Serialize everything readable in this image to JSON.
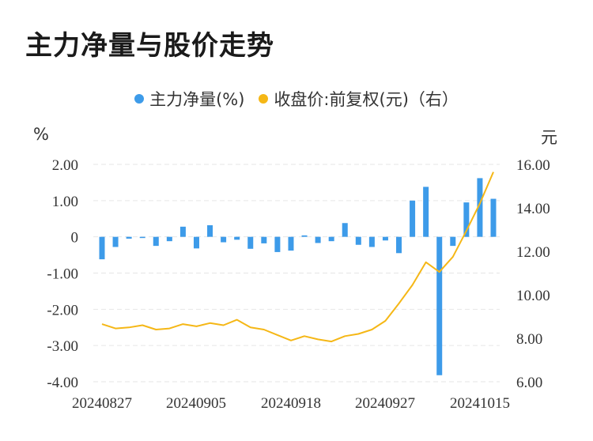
{
  "title": "主力净量与股价走势",
  "legend": {
    "series1": "主力净量(%)",
    "series2": "收盘价:前复权(元)（右）"
  },
  "units": {
    "left": "%",
    "right": "元"
  },
  "colors": {
    "bar": "#3d9be9",
    "line": "#f5b716",
    "grid": "#e6e6e6"
  },
  "chart_data": {
    "type": "bar",
    "x_tick_labels": [
      "20240827",
      "20240905",
      "20240918",
      "20240927",
      "20241015"
    ],
    "y_left": {
      "ticks": [
        "2.00",
        "1.00",
        "0",
        "-1.00",
        "-2.00",
        "-3.00",
        "-4.00"
      ],
      "range": [
        -4,
        2
      ]
    },
    "y_right": {
      "ticks": [
        "16.00",
        "14.00",
        "12.00",
        "10.00",
        "8.00",
        "6.00"
      ],
      "range": [
        6,
        16
      ]
    },
    "series": [
      {
        "name": "主力净量(%)",
        "type": "bar",
        "axis": "left",
        "values": [
          -0.62,
          -0.28,
          -0.05,
          -0.02,
          -0.25,
          -0.12,
          0.28,
          -0.32,
          0.32,
          -0.15,
          -0.08,
          -0.33,
          -0.18,
          -0.42,
          -0.38,
          0.04,
          -0.17,
          -0.12,
          0.38,
          -0.22,
          -0.28,
          -0.1,
          -0.45,
          1.0,
          1.38,
          -3.82,
          -0.25,
          0.95,
          1.62,
          1.05
        ]
      },
      {
        "name": "收盘价:前复权(元)（右）",
        "type": "line",
        "axis": "right",
        "values": [
          8.65,
          8.45,
          8.5,
          8.6,
          8.4,
          8.45,
          8.65,
          8.55,
          8.7,
          8.6,
          8.85,
          8.5,
          8.4,
          8.15,
          7.9,
          8.1,
          7.95,
          7.85,
          8.1,
          8.2,
          8.4,
          8.8,
          9.6,
          10.45,
          11.5,
          11.05,
          11.75,
          12.95,
          14.2,
          15.65
        ]
      }
    ]
  }
}
